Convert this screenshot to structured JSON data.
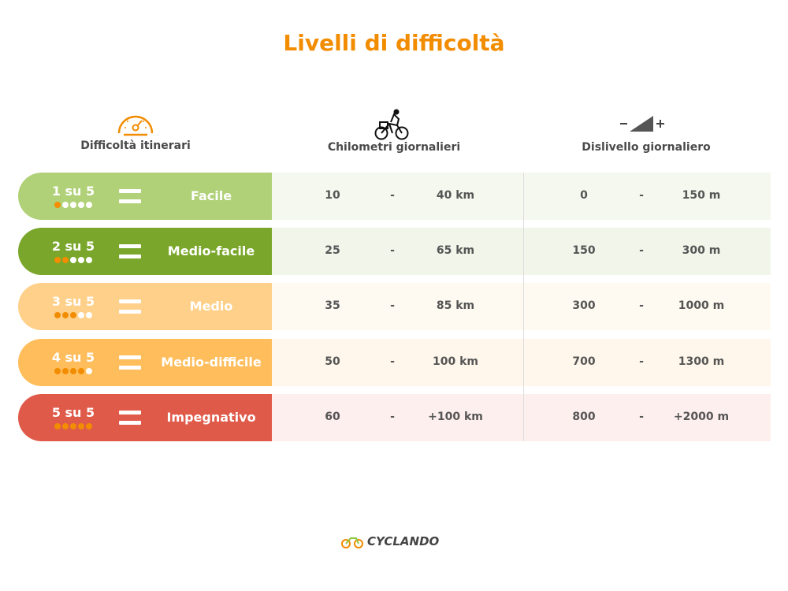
{
  "title": "Livelli di difficoltà",
  "headers": {
    "difficulty": "Difficoltà itinerari",
    "km": "Chilometri giornalieri",
    "elevation": "Dislivello giornaliero"
  },
  "icons": {
    "difficulty": "speedometer-icon",
    "km": "cyclist-icon",
    "elevation": "elevation-slope-icon"
  },
  "rows": [
    {
      "level": "1 su 5",
      "dots_filled": 1,
      "name": "Facile",
      "km_min": "10",
      "sep": "-",
      "km_max": "40 km",
      "m_min": "0",
      "m_max": "150 m",
      "color": "#b0d178",
      "bg": "#f5f8ee"
    },
    {
      "level": "2 su 5",
      "dots_filled": 2,
      "name": "Medio-facile",
      "km_min": "25",
      "sep": "-",
      "km_max": "65 km",
      "m_min": "150",
      "m_max": "300 m",
      "color": "#7aa72b",
      "bg": "#f1f5ea"
    },
    {
      "level": "3 su 5",
      "dots_filled": 3,
      "name": "Medio",
      "km_min": "35",
      "sep": "-",
      "km_max": "85 km",
      "m_min": "300",
      "m_max": "1000 m",
      "color": "#ffd08a",
      "bg": "#fffaf1"
    },
    {
      "level": "4 su 5",
      "dots_filled": 4,
      "name": "Medio-difficile",
      "km_min": "50",
      "sep": "-",
      "km_max": "100 km",
      "m_min": "700",
      "m_max": "1300 m",
      "color": "#ffbd5c",
      "bg": "#fff7eb"
    },
    {
      "level": "5 su 5",
      "dots_filled": 5,
      "name": "Impegnativo",
      "km_min": "60",
      "sep": "-",
      "km_max": "+100 km",
      "m_min": "800",
      "m_max": "+2000 m",
      "color": "#e05a4a",
      "bg": "#fcefed"
    }
  ],
  "logo": {
    "text": "CYCLANDO",
    "accent": "#f28c00"
  },
  "colors": {
    "accent": "#f28c00"
  }
}
